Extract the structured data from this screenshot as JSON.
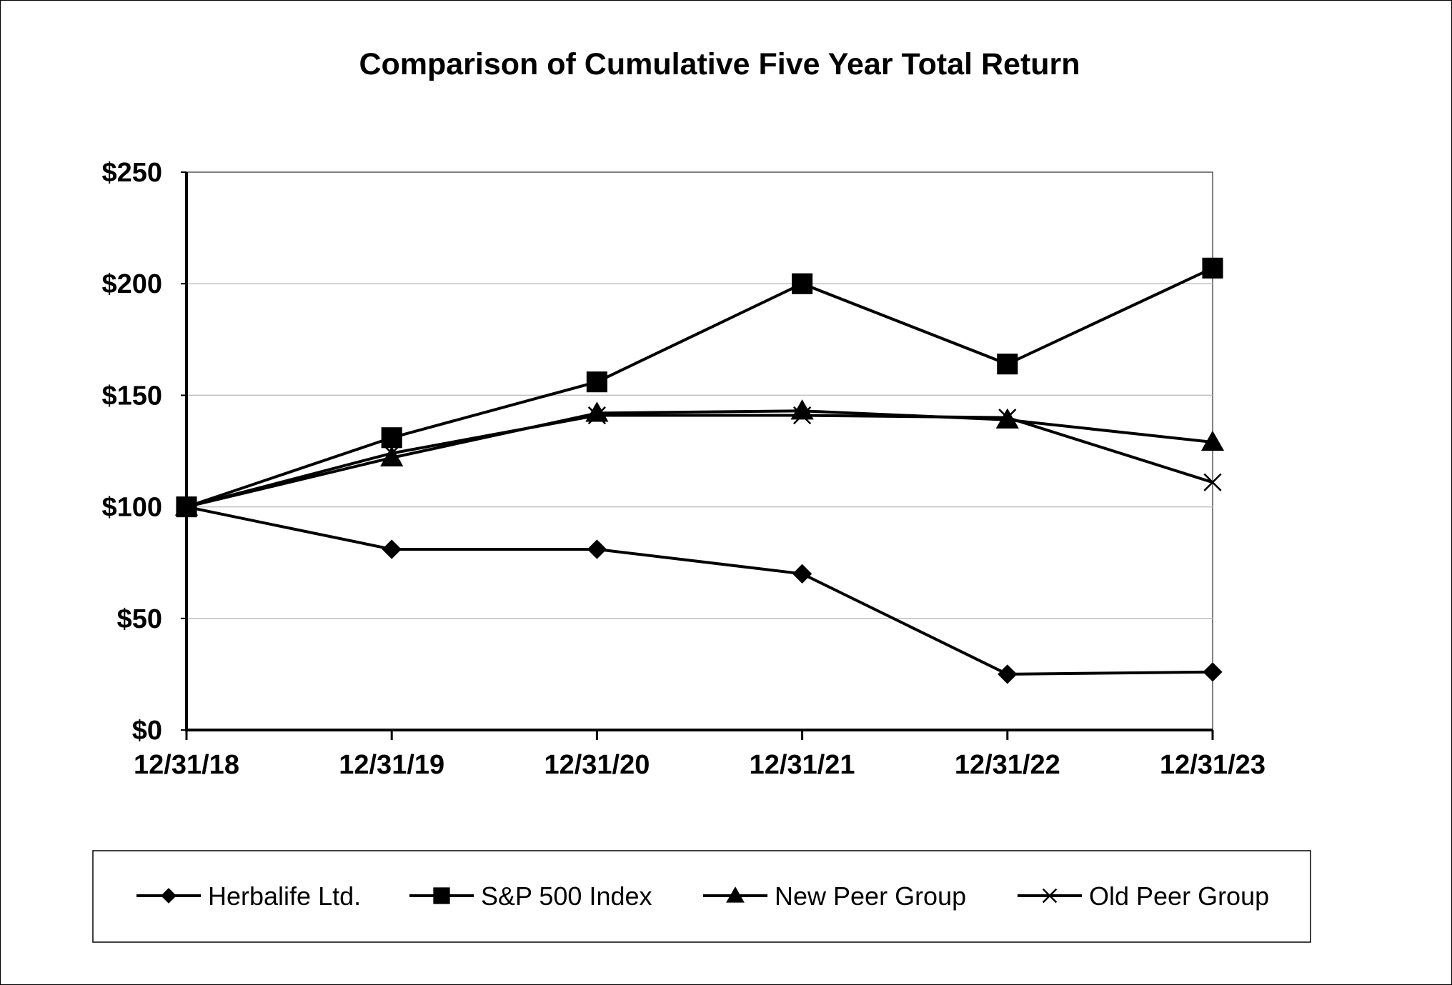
{
  "chart_data": {
    "type": "line",
    "title": "Comparison of Cumulative Five Year Total Return",
    "xlabel": "",
    "ylabel": "",
    "categories": [
      "12/31/18",
      "12/31/19",
      "12/31/20",
      "12/31/21",
      "12/31/22",
      "12/31/23"
    ],
    "y_ticks": [
      "$0",
      "$50",
      "$100",
      "$150",
      "$200",
      "$250"
    ],
    "ylim": [
      0,
      250
    ],
    "grid": true,
    "legend_position": "bottom",
    "series": [
      {
        "name": "Herbalife Ltd.",
        "marker": "diamond",
        "values": [
          100,
          81,
          81,
          70,
          25,
          26
        ]
      },
      {
        "name": "S&P 500 Index",
        "marker": "square",
        "values": [
          100,
          131,
          156,
          200,
          164,
          207
        ]
      },
      {
        "name": "New Peer Group",
        "marker": "triangle",
        "values": [
          100,
          122,
          142,
          143,
          139,
          129
        ]
      },
      {
        "name": "Old Peer Group",
        "marker": "x",
        "values": [
          100,
          124,
          141,
          141,
          140,
          111
        ]
      }
    ],
    "colors": {
      "line": "#000000",
      "grid": "#c0c0c0",
      "background": "#ffffff"
    }
  }
}
